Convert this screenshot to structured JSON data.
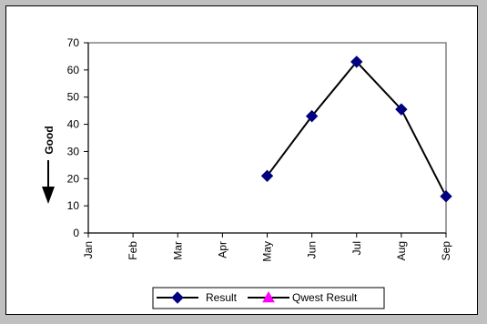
{
  "chart_data": {
    "type": "line",
    "categories": [
      "Jan",
      "Feb",
      "Mar",
      "Apr",
      "May",
      "Jun",
      "Jul",
      "Aug",
      "Sep"
    ],
    "ylim": [
      0,
      70
    ],
    "yticks": [
      0,
      10,
      20,
      30,
      40,
      50,
      60,
      70
    ],
    "ylabel": "Good",
    "ylabel_arrow": "down",
    "series": [
      {
        "name": "Result",
        "values": [
          null,
          null,
          null,
          null,
          21,
          43,
          63,
          45.5,
          13.5
        ],
        "color": "#000080",
        "line_color": "#000000",
        "marker": "diamond"
      },
      {
        "name": "Qwest Result",
        "values": [
          null,
          null,
          null,
          null,
          null,
          null,
          null,
          null,
          null
        ],
        "color": "#ff00ff",
        "line_color": "#000000",
        "marker": "triangle"
      }
    ],
    "grid": false,
    "legend_position": "bottom"
  },
  "colors": {
    "background": "#c0c0c0",
    "plot_background": "#ffffff",
    "axis": "#000000"
  }
}
